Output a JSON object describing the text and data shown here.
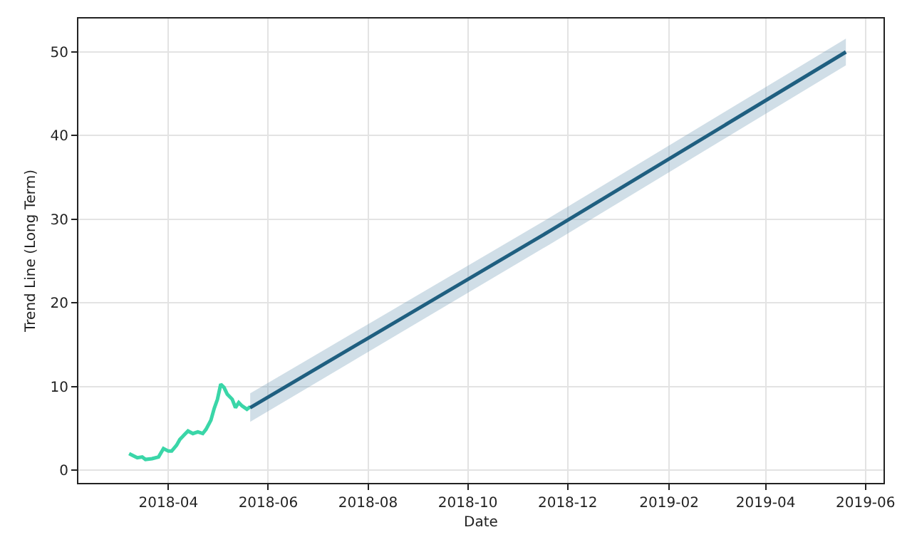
{
  "chart_data": {
    "type": "line",
    "xlabel": "Date",
    "ylabel": "Trend Line (Long Term)",
    "xlim": [
      "2018-02-05",
      "2019-06-12"
    ],
    "ylim": [
      -1.5,
      54
    ],
    "xticks": [
      "2018-04",
      "2018-06",
      "2018-08",
      "2018-10",
      "2018-12",
      "2019-02",
      "2019-04",
      "2019-06"
    ],
    "yticks": [
      0,
      10,
      20,
      30,
      40,
      50
    ],
    "grid": true,
    "marker": "none",
    "line_style": "solid",
    "series": [
      {
        "color": "#3ad6a8",
        "x": [
          "2018-03-08",
          "2018-03-10",
          "2018-03-13",
          "2018-03-16",
          "2018-03-18",
          "2018-03-22",
          "2018-03-26",
          "2018-03-29",
          "2018-04-01",
          "2018-04-03",
          "2018-04-06",
          "2018-04-08",
          "2018-04-11",
          "2018-04-13",
          "2018-04-16",
          "2018-04-19",
          "2018-04-22",
          "2018-04-24",
          "2018-04-27",
          "2018-04-29",
          "2018-05-01",
          "2018-05-03",
          "2018-05-05",
          "2018-05-07",
          "2018-05-10",
          "2018-05-12",
          "2018-05-14",
          "2018-05-16",
          "2018-05-19",
          "2018-05-21"
        ],
        "values": [
          2.0,
          1.8,
          1.5,
          1.6,
          1.3,
          1.4,
          1.6,
          2.6,
          2.3,
          2.3,
          3.0,
          3.7,
          4.3,
          4.7,
          4.4,
          4.6,
          4.4,
          4.9,
          6.0,
          7.4,
          8.5,
          10.3,
          9.9,
          9.1,
          8.5,
          7.5,
          8.1,
          7.7,
          7.3,
          7.6
        ]
      },
      {
        "color": "#1f5f80",
        "x": [
          "2018-05-21",
          "2018-11-20",
          "2019-05-20"
        ],
        "values": [
          7.5,
          28.6,
          50
        ],
        "lower": [
          5.8,
          27.0,
          48.4
        ],
        "upper": [
          9.2,
          30.2,
          51.6
        ]
      }
    ]
  }
}
